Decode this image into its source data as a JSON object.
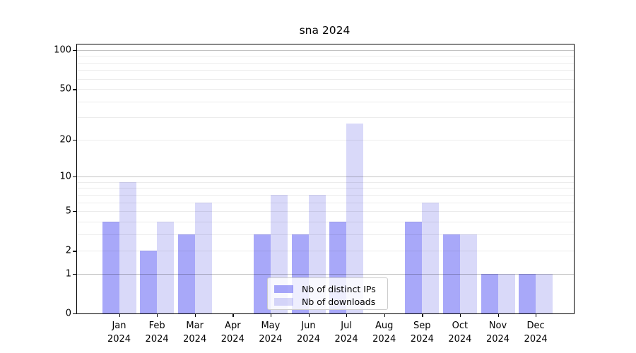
{
  "title": "sna 2024",
  "chart_data": {
    "type": "bar",
    "title": "sna 2024",
    "categories": [
      "Jan 2024",
      "Feb 2024",
      "Mar 2024",
      "Apr 2024",
      "May 2024",
      "Jun 2024",
      "Jul 2024",
      "Aug 2024",
      "Sep 2024",
      "Oct 2024",
      "Nov 2024",
      "Dec 2024"
    ],
    "series": [
      {
        "name": "Nb of distinct IPs",
        "color": "#a9a9f6",
        "render_rgba": "rgba(88,88,243,0.52)",
        "values": [
          4,
          2,
          3,
          0,
          3,
          3,
          4,
          0,
          4,
          3,
          1,
          1
        ]
      },
      {
        "name": "Nb of downloads",
        "color": "#d9d9f8",
        "render_rgba": "rgba(130,130,235,0.30)",
        "values": [
          9,
          4,
          6,
          0,
          7,
          7,
          27,
          0,
          6,
          3,
          1,
          1
        ]
      }
    ],
    "xlabel": "",
    "ylabel": "",
    "yscale": "log1p",
    "ylim": [
      0,
      111
    ],
    "yticks": [
      0,
      1,
      2,
      5,
      10,
      20,
      50,
      100
    ],
    "minor_gridlines": [
      2,
      3,
      4,
      5,
      6,
      7,
      8,
      9,
      20,
      30,
      40,
      50,
      60,
      70,
      80,
      90
    ],
    "major_gridlines": [
      1,
      10,
      100
    ],
    "grid": "horizontal",
    "legend_position": "lower center"
  },
  "legend": {
    "items": [
      "Nb of distinct IPs",
      "Nb of downloads"
    ]
  },
  "colors": {
    "grid_minor": "rgba(0,0,0,0.075)",
    "grid_major": "rgba(0,0,0,0.24)",
    "spine": "#000000",
    "legend_bg": "rgba(255,255,255,0.8)",
    "legend_border": "#cccccc"
  }
}
